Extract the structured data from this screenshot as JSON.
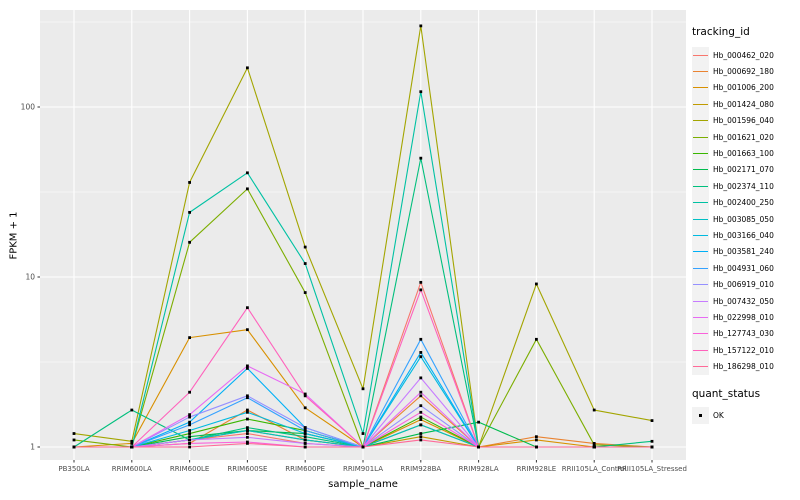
{
  "chart_data": {
    "type": "line",
    "title": "",
    "xlabel": "sample_name",
    "ylabel": "FPKM + 1",
    "y_scale": "log10",
    "ylim": [
      0.85,
      372
    ],
    "y_ticks": [
      1,
      10,
      100
    ],
    "y_minor_ticks": [
      3.162,
      31.62,
      316.2
    ],
    "grid": "on",
    "legend_position": "right",
    "point_marker": "filled-square",
    "point_color": "#000000",
    "categories": [
      "PB350LA",
      "RRIM600LA",
      "RRIM600LE",
      "RRIM600SE",
      "RRIM600PE",
      "RRIM901LA",
      "RRIM928BA",
      "RRIM928LA",
      "RRIM928LE",
      "RRII105LA_Control",
      "RRII105LA_Stressed"
    ],
    "series": [
      {
        "name": "Hb_000462_020",
        "color": "#F8766D",
        "values": [
          1.0,
          1.0,
          1.1,
          1.2,
          1.05,
          1.0,
          9.3,
          1.0,
          1.0,
          1.0,
          1.0
        ]
      },
      {
        "name": "Hb_000692_180",
        "color": "#EA8331",
        "values": [
          1.0,
          1.0,
          1.05,
          1.65,
          1.1,
          1.0,
          2.0,
          1.0,
          1.15,
          1.05,
          1.0
        ]
      },
      {
        "name": "Hb_001006_200",
        "color": "#D89000",
        "values": [
          1.0,
          1.05,
          4.4,
          4.9,
          1.7,
          1.0,
          1.45,
          1.0,
          1.1,
          1.0,
          1.0
        ]
      },
      {
        "name": "Hb_001424_080",
        "color": "#C09B00",
        "values": [
          1.0,
          1.0,
          1.1,
          1.25,
          1.1,
          1.0,
          1.15,
          1.0,
          1.0,
          1.0,
          1.0
        ]
      },
      {
        "name": "Hb_001596_040",
        "color": "#A3A500",
        "values": [
          1.2,
          1.08,
          36,
          170,
          15,
          2.2,
          300,
          1.0,
          9.1,
          1.65,
          1.43
        ]
      },
      {
        "name": "Hb_001621_020",
        "color": "#7CAE00",
        "values": [
          1.1,
          1.0,
          16,
          33,
          8.1,
          1.0,
          1.35,
          1.0,
          4.3,
          1.03,
          1.0
        ]
      },
      {
        "name": "Hb_001663_100",
        "color": "#39B600",
        "values": [
          1.0,
          1.0,
          1.2,
          1.46,
          1.25,
          1.0,
          1.5,
          1.0,
          1.0,
          1.0,
          1.0
        ]
      },
      {
        "name": "Hb_002171_070",
        "color": "#00BB4E",
        "values": [
          1.0,
          1.0,
          1.15,
          1.25,
          1.2,
          1.0,
          1.2,
          1.4,
          1.0,
          1.0,
          1.0
        ]
      },
      {
        "name": "Hb_002374_110",
        "color": "#00BF7D",
        "values": [
          1.0,
          1.65,
          1.1,
          1.3,
          1.15,
          1.0,
          50,
          1.0,
          1.0,
          1.0,
          1.08
        ]
      },
      {
        "name": "Hb_002400_250",
        "color": "#00C1A3",
        "values": [
          1.0,
          1.0,
          24,
          41,
          12,
          1.2,
          123,
          1.0,
          1.0,
          1.0,
          1.0
        ]
      },
      {
        "name": "Hb_003085_050",
        "color": "#00BFC4",
        "values": [
          1.0,
          1.0,
          1.1,
          1.25,
          1.1,
          1.0,
          1.35,
          1.0,
          1.0,
          1.0,
          1.0
        ]
      },
      {
        "name": "Hb_003166_040",
        "color": "#00BAE0",
        "values": [
          1.0,
          1.0,
          1.25,
          1.6,
          1.2,
          1.0,
          3.4,
          1.0,
          1.0,
          1.0,
          1.0
        ]
      },
      {
        "name": "Hb_003581_240",
        "color": "#00B0F6",
        "values": [
          1.0,
          1.0,
          1.4,
          2.9,
          1.3,
          1.0,
          3.6,
          1.0,
          1.0,
          1.0,
          1.0
        ]
      },
      {
        "name": "Hb_004931_060",
        "color": "#35A2FF",
        "values": [
          1.0,
          1.0,
          1.35,
          1.95,
          1.25,
          1.0,
          4.3,
          1.0,
          1.0,
          1.0,
          1.0
        ]
      },
      {
        "name": "Hb_006919_010",
        "color": "#9590FF",
        "values": [
          1.0,
          1.0,
          1.5,
          2.0,
          1.3,
          1.0,
          1.75,
          1.0,
          1.0,
          1.0,
          1.0
        ]
      },
      {
        "name": "Hb_007432_050",
        "color": "#C77CFF",
        "values": [
          1.0,
          1.0,
          1.1,
          1.14,
          1.05,
          1.0,
          2.55,
          1.0,
          1.0,
          1.0,
          1.0
        ]
      },
      {
        "name": "Hb_022998_010",
        "color": "#E76BF3",
        "values": [
          1.0,
          1.0,
          1.55,
          3.0,
          2.05,
          1.0,
          2.1,
          1.0,
          1.0,
          1.0,
          1.0
        ]
      },
      {
        "name": "Hb_127743_030",
        "color": "#FA62DB",
        "values": [
          1.0,
          1.0,
          1.05,
          1.07,
          1.0,
          1.0,
          1.6,
          1.0,
          1.0,
          1.0,
          1.0
        ]
      },
      {
        "name": "Hb_157122_010",
        "color": "#FF62BC",
        "values": [
          1.0,
          1.0,
          2.1,
          6.6,
          2.0,
          1.0,
          8.4,
          1.0,
          1.0,
          1.0,
          1.0
        ]
      },
      {
        "name": "Hb_186298_010",
        "color": "#FF6A98",
        "values": [
          1.0,
          1.0,
          1.0,
          1.05,
          1.0,
          1.0,
          1.1,
          1.0,
          1.0,
          1.0,
          1.0
        ]
      }
    ],
    "legend": {
      "tracking_title": "tracking_id",
      "quant_title": "quant_status",
      "quant_ok_label": "OK"
    }
  },
  "colors": {
    "panel_bg": "#EBEBEB",
    "gridline": "#FFFFFF",
    "tick_mark": "#333333",
    "tick_text": "#4D4D4D",
    "axis_title_text": "#000000",
    "legend_key_bg": "#F2F2F2",
    "marker": "#000000"
  }
}
